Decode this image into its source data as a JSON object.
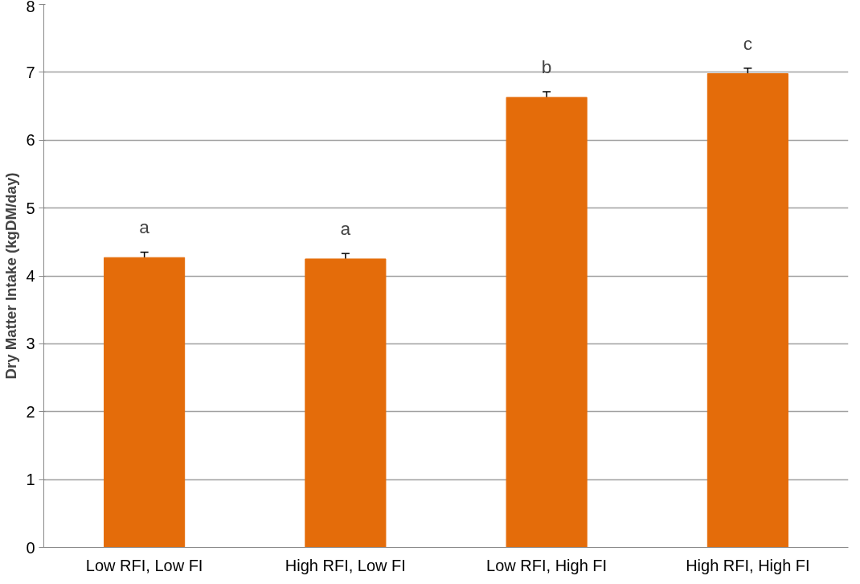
{
  "chart_data": {
    "type": "bar",
    "ylabel": "Dry Matter Intake (kgDM/day)",
    "categories": [
      "Low RFI, Low FI",
      "High RFI, Low FI",
      "Low RFI, High FI",
      "High RFI, High FI"
    ],
    "values": [
      4.27,
      4.25,
      6.63,
      6.98
    ],
    "errors": [
      0.08,
      0.08,
      0.085,
      0.08
    ],
    "color": "#e46c0a",
    "ylim": [
      0,
      8
    ],
    "yticks": [
      0,
      1,
      2,
      3,
      4,
      5,
      6,
      7,
      8
    ],
    "grid": "y",
    "annotations": [
      "a",
      "a",
      "b",
      "c"
    ]
  }
}
